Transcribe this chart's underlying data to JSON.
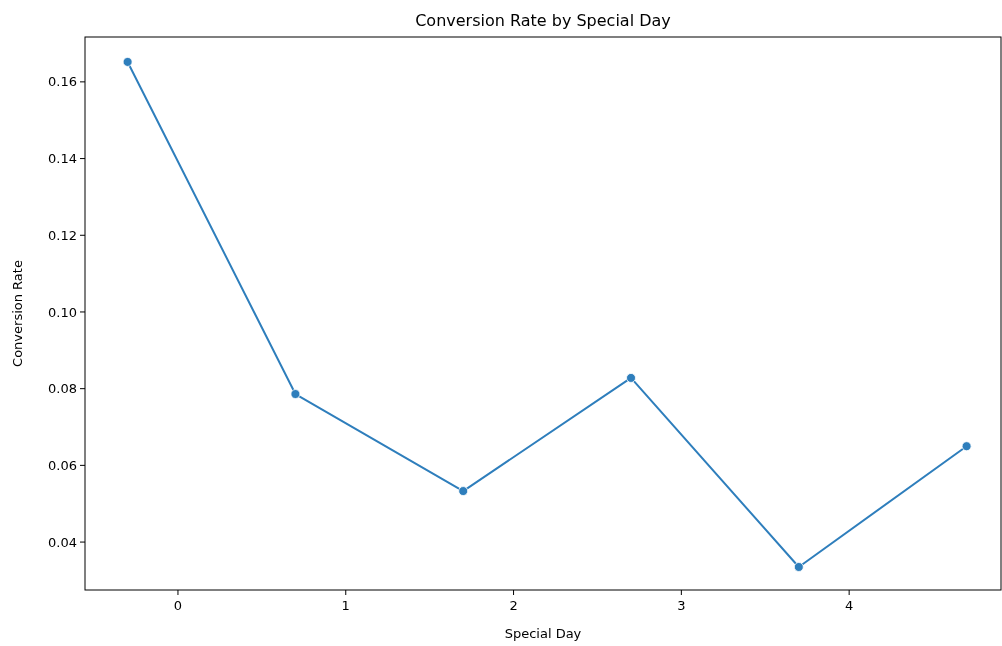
{
  "chart_data": {
    "type": "line",
    "title": "Conversion Rate by Special Day",
    "xlabel": "Special Day",
    "ylabel": "Conversion Rate",
    "x": [
      -0.3,
      0.7,
      1.7,
      2.7,
      3.7,
      4.7
    ],
    "series": [
      {
        "color": "#2e7ebc",
        "values": [
          0.1652,
          0.0786,
          0.0533,
          0.0828,
          0.0335,
          0.065
        ]
      }
    ],
    "xlim": [
      -0.554,
      4.905
    ],
    "xticks": [
      0,
      1,
      2,
      3,
      4
    ],
    "ylim": [
      0.0275,
      0.1717
    ],
    "yticks": [
      {
        "value": 0.04,
        "label": "0.04"
      },
      {
        "value": 0.06,
        "label": "0.06"
      },
      {
        "value": 0.08,
        "label": "0.08"
      },
      {
        "value": 0.1,
        "label": "0.10"
      },
      {
        "value": 0.12,
        "label": "0.12"
      },
      {
        "value": 0.14,
        "label": "0.14"
      },
      {
        "value": 0.16,
        "label": "0.16"
      }
    ],
    "marker": "circle",
    "line_style": "solid"
  }
}
